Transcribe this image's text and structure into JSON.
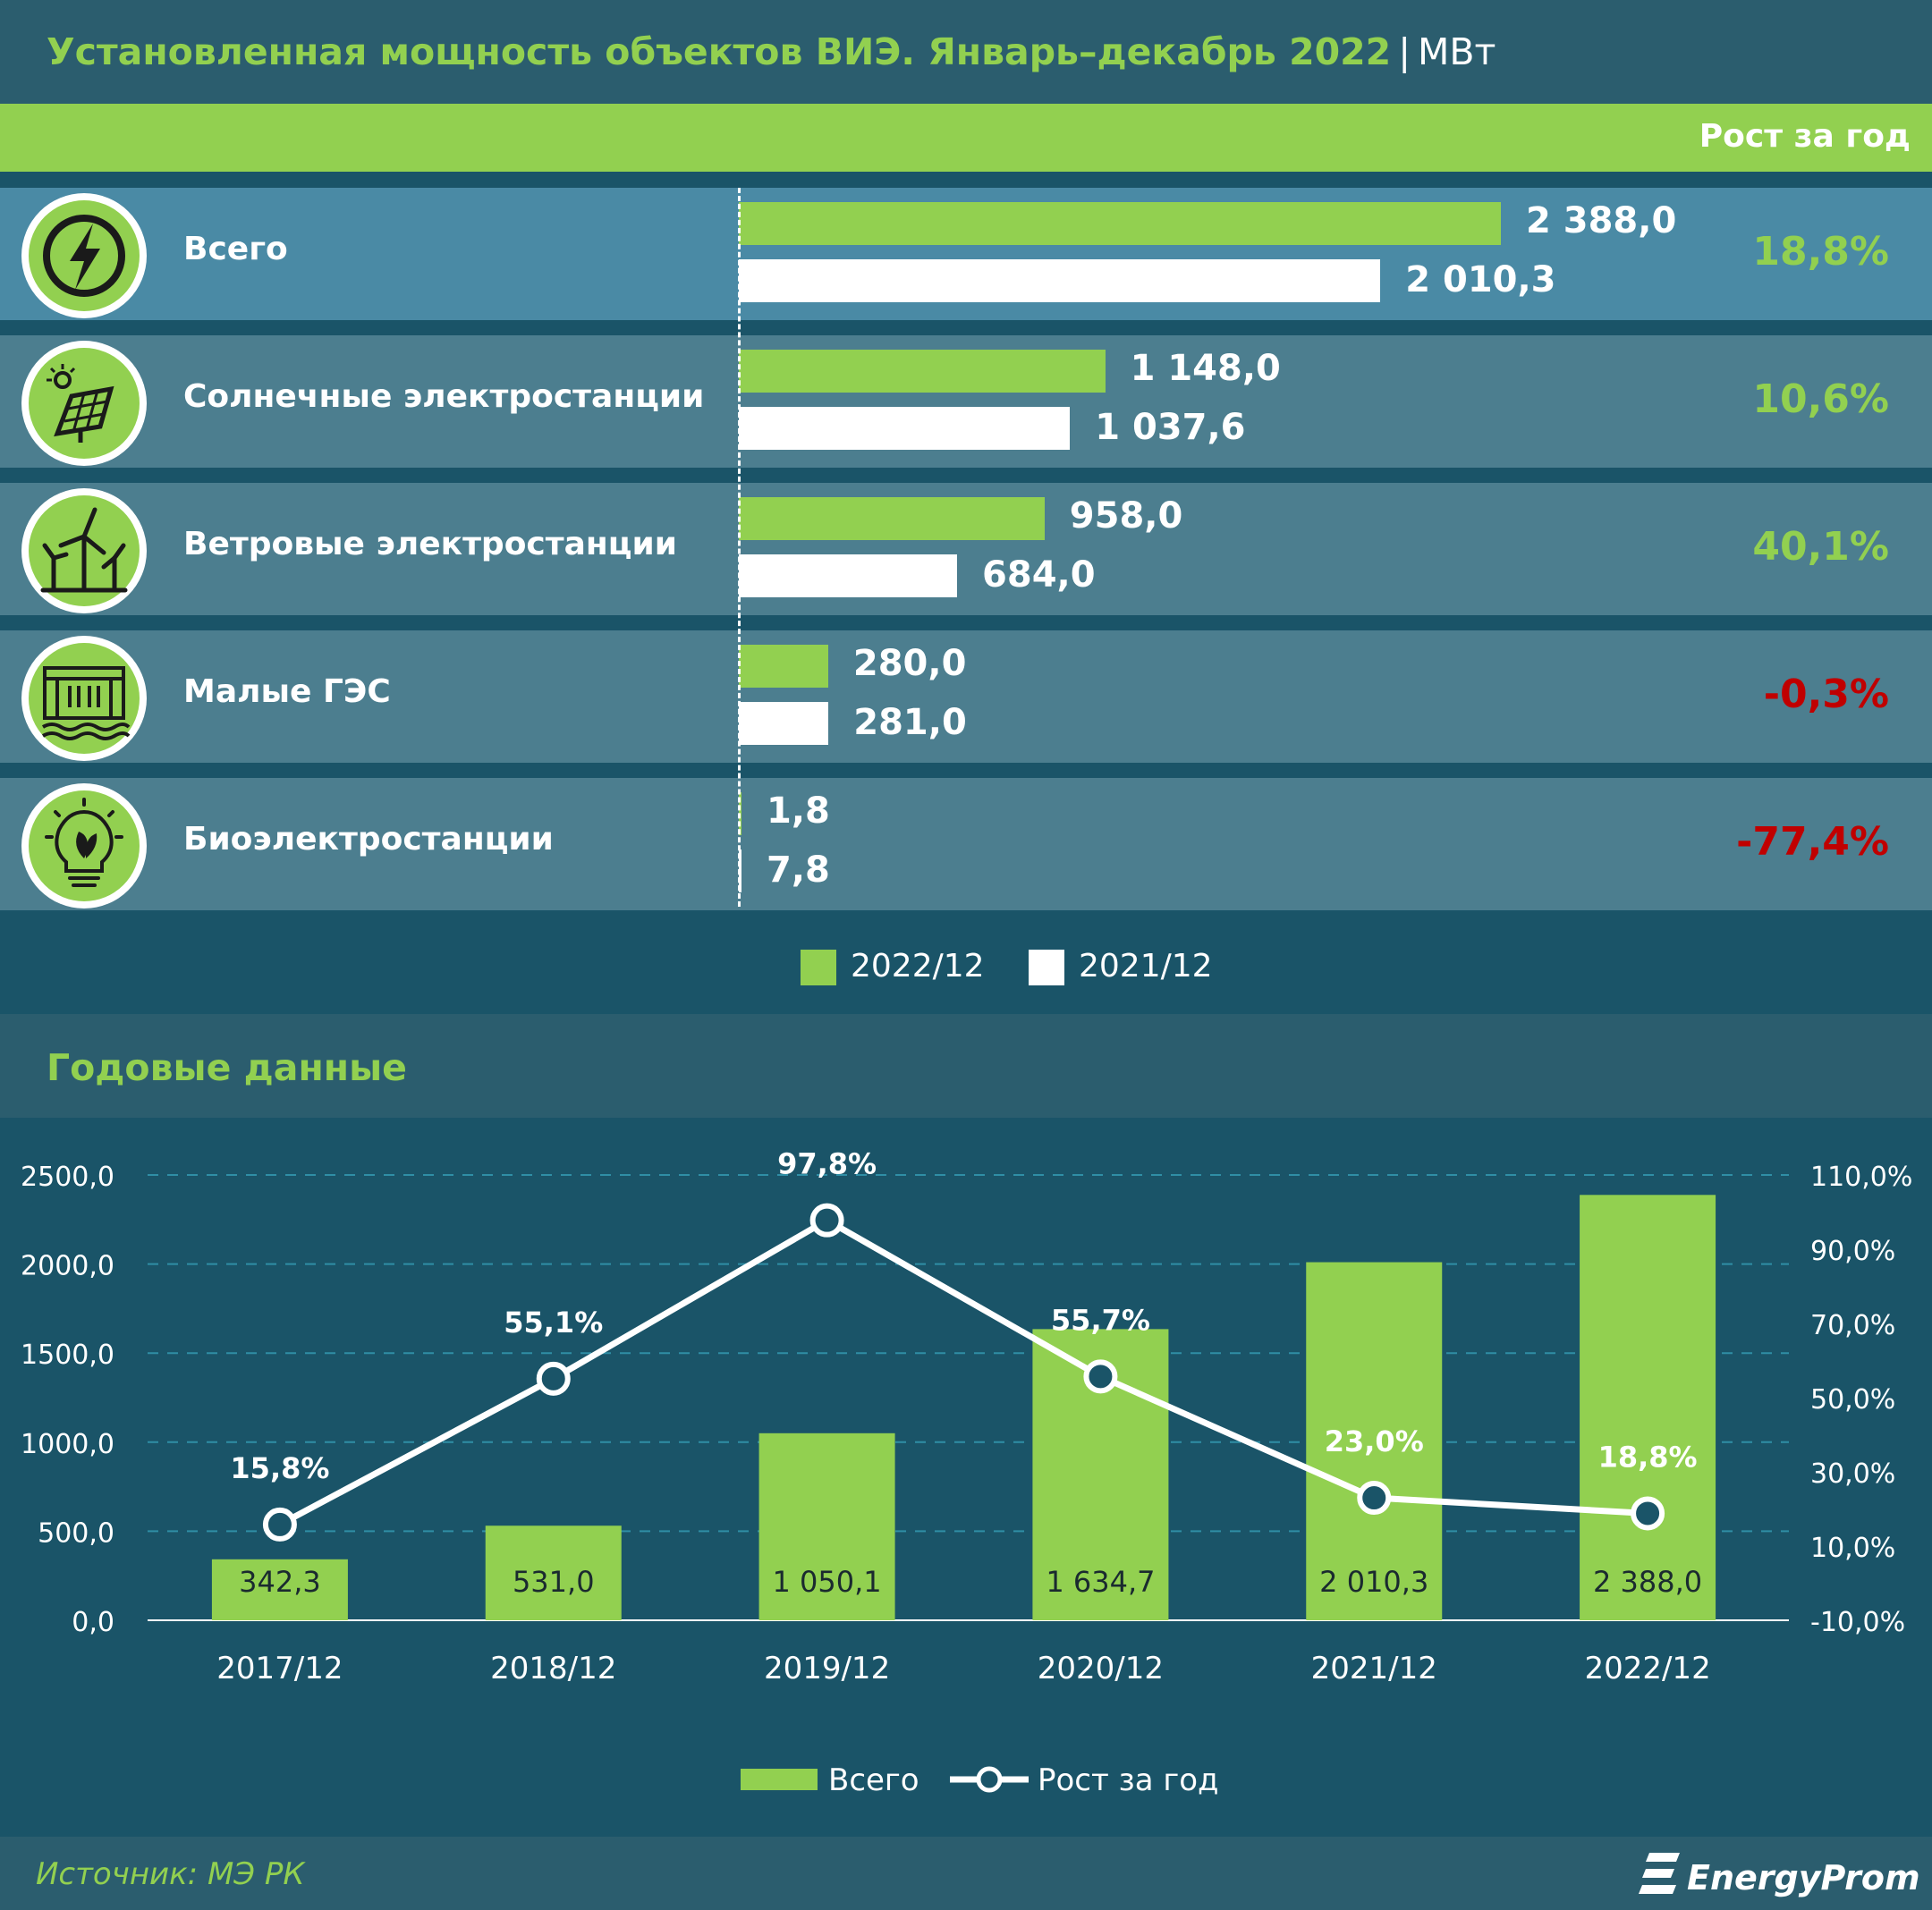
{
  "header": {
    "title": "Установленная мощность объектов ВИЭ. Январь–декабрь 2022",
    "separator": "|",
    "unit": "МВт"
  },
  "growth_column_label": "Рост за год",
  "colors": {
    "current": "#92d050",
    "previous": "#ffffff",
    "positive": "#92d050",
    "negative": "#c00000",
    "background": "#1a5468"
  },
  "top_chart": {
    "categories": [
      {
        "label": "Всего",
        "icon": "lightning-icon",
        "current": 2388.0,
        "current_label": "2 388,0",
        "previous": 2010.3,
        "previous_label": "2 010,3",
        "growth": "18,8%",
        "growth_sign": "positive"
      },
      {
        "label": "Солнечные электростанции",
        "icon": "solar-panel-icon",
        "current": 1148.0,
        "current_label": "1 148,0",
        "previous": 1037.6,
        "previous_label": "1 037,6",
        "growth": "10,6%",
        "growth_sign": "positive"
      },
      {
        "label": "Ветровые электростанции",
        "icon": "wind-turbine-icon",
        "current": 958.0,
        "current_label": "958,0",
        "previous": 684.0,
        "previous_label": "684,0",
        "growth": "40,1%",
        "growth_sign": "positive"
      },
      {
        "label": "Малые ГЭС",
        "icon": "hydro-dam-icon",
        "current": 280.0,
        "current_label": "280,0",
        "previous": 281.0,
        "previous_label": "281,0",
        "growth": "-0,3%",
        "growth_sign": "negative"
      },
      {
        "label": "Биоэлектростанции",
        "icon": "bio-bulb-icon",
        "current": 1.8,
        "current_label": "1,8",
        "previous": 7.8,
        "previous_label": "7,8",
        "growth": "-77,4%",
        "growth_sign": "negative"
      }
    ],
    "legend": {
      "current": "2022/12",
      "previous": "2021/12"
    }
  },
  "annual": {
    "title": "Годовые данные"
  },
  "chart_data": {
    "type": "bar",
    "categories": [
      "2017/12",
      "2018/12",
      "2019/12",
      "2020/12",
      "2021/12",
      "2022/12"
    ],
    "series": [
      {
        "name": "Всего",
        "type": "bar",
        "axis": "left",
        "values": [
          342.3,
          531.0,
          1050.1,
          1634.7,
          2010.3,
          2388.0
        ],
        "labels": [
          "342,3",
          "531,0",
          "1 050,1",
          "1 634,7",
          "2 010,3",
          "2 388,0"
        ]
      },
      {
        "name": "Рост за год",
        "type": "line",
        "axis": "right",
        "values": [
          15.8,
          55.1,
          97.8,
          55.7,
          23.0,
          18.8
        ],
        "labels": [
          "15,8%",
          "55,1%",
          "97,8%",
          "55,7%",
          "23,0%",
          "18,8%"
        ]
      }
    ],
    "y_left": {
      "range": [
        0,
        2500
      ],
      "ticks": [
        "0,0",
        "500,0",
        "1000,0",
        "1500,0",
        "2000,0",
        "2500,0"
      ]
    },
    "y_right": {
      "range": [
        -10,
        110
      ],
      "ticks": [
        "-10,0%",
        "10,0%",
        "30,0%",
        "50,0%",
        "70,0%",
        "90,0%",
        "110,0%"
      ]
    },
    "grid": true,
    "legend_position": "bottom"
  },
  "footer": {
    "source": "Источник: МЭ РК",
    "brand": "EnergyProm"
  }
}
